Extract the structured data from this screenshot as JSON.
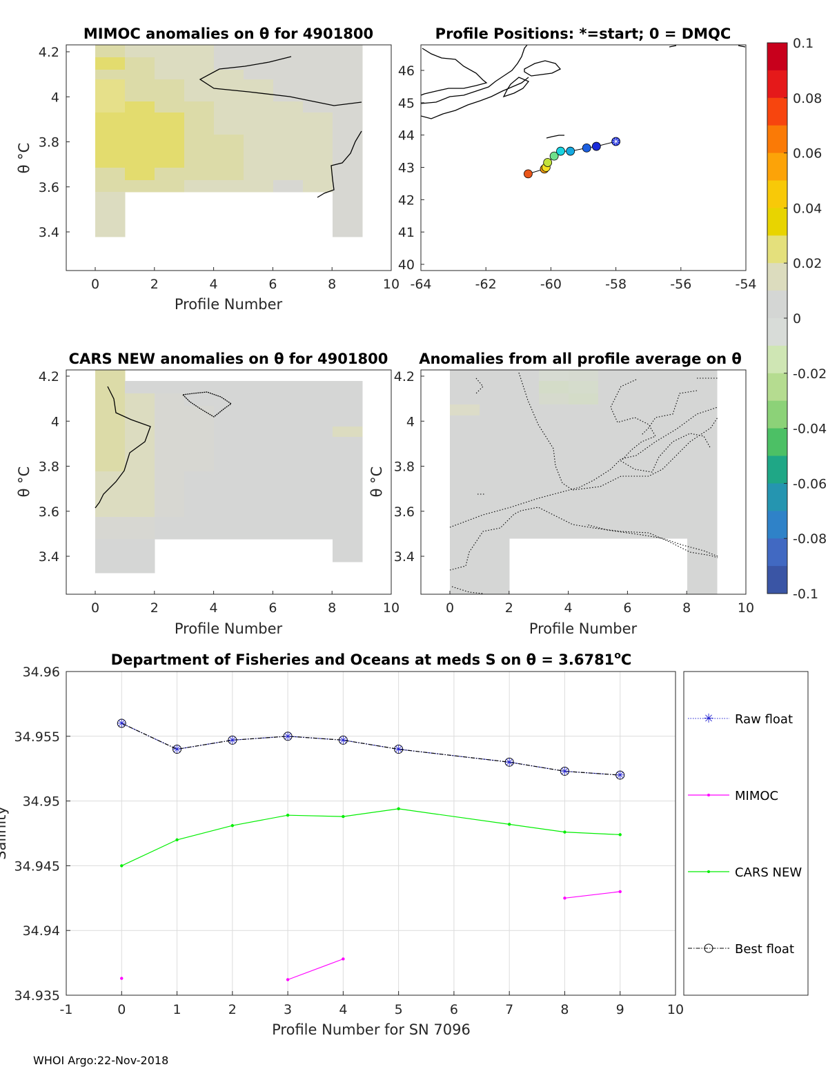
{
  "footer": "WHOI Argo:22-Nov-2018",
  "theta_symbol": "θ",
  "panels": {
    "mimoc": {
      "title": "MIMOC anomalies on θ  for 4901800",
      "xlabel": "Profile Number",
      "ylabel": "θ °C",
      "xticks": [
        "0",
        "2",
        "4",
        "6",
        "8",
        "10"
      ],
      "yticks": [
        "3.4",
        "3.6",
        "3.8",
        "4",
        "4.2"
      ]
    },
    "positions": {
      "title": "Profile Positions: *=start; 0 = DMQC",
      "xticks": [
        "-64",
        "-62",
        "-60",
        "-58",
        "-56",
        "-54"
      ],
      "yticks": [
        "40",
        "41",
        "42",
        "43",
        "44",
        "45",
        "46"
      ]
    },
    "cars": {
      "title": "CARS NEW anomalies on θ for 4901800",
      "xlabel": "Profile Number",
      "ylabel": "θ °C",
      "xticks": [
        "0",
        "2",
        "4",
        "6",
        "8",
        "10"
      ],
      "yticks": [
        "3.4",
        "3.6",
        "3.8",
        "4",
        "4.2"
      ]
    },
    "average": {
      "title": "Anomalies from all profile average on θ",
      "xlabel": "Profile Number",
      "ylabel": "θ °C",
      "xticks": [
        "0",
        "2",
        "4",
        "6",
        "8",
        "10"
      ],
      "yticks": [
        "3.4",
        "3.6",
        "3.8",
        "4",
        "4.2"
      ]
    }
  },
  "colorbar": {
    "ticks": [
      "0.1",
      "0.08",
      "0.06",
      "0.04",
      "0.02",
      "0",
      "-0.02",
      "-0.04",
      "-0.06",
      "-0.08",
      "-0.1"
    ],
    "colors": [
      "#c8001c",
      "#e5191a",
      "#f7450e",
      "#fa7a06",
      "#fca308",
      "#f8c908",
      "#e8d400",
      "#e4e07c",
      "#dcdcbe",
      "#d4d6d4",
      "#d8dcd8",
      "#cfe6b4",
      "#b5dc90",
      "#8cd278",
      "#4cc065",
      "#1fa786",
      "#2595b0",
      "#2f82c8",
      "#4169c2",
      "#3a55a5"
    ],
    "accent": "#c4001c"
  },
  "positions_data": {
    "lon": [
      -58.0,
      -58.6,
      -58.9,
      -59.4,
      -59.7,
      -59.9,
      -60.1,
      -60.15,
      -60.2,
      -60.7
    ],
    "lat": [
      43.8,
      43.65,
      43.6,
      43.5,
      43.5,
      43.35,
      43.15,
      43.0,
      42.95,
      42.8
    ],
    "colors": [
      "#1a2bd9",
      "#1a2bd9",
      "#1c5fe0",
      "#15a9e0",
      "#19d4e0",
      "#6ee08c",
      "#c2e33c",
      "#f5e020",
      "#f29a16",
      "#e9561a"
    ]
  },
  "chart_data": {
    "type": "line",
    "title": "Department of Fisheries and Oceans at meds S on θ = 3.6781°C",
    "title_parts": {
      "main": "Department of Fisheries and Oceans at meds S on θ = 3.6781",
      "degree": "o",
      "unit": "C"
    },
    "xlabel": "Profile Number for SN 7096",
    "ylabel": "Salinity",
    "xlim": [
      -1,
      10
    ],
    "ylim": [
      34.935,
      34.96
    ],
    "xticks": [
      "-1",
      "0",
      "1",
      "2",
      "3",
      "4",
      "5",
      "6",
      "7",
      "8",
      "9",
      "10"
    ],
    "yticks": [
      "34.935",
      "34.94",
      "34.945",
      "34.95",
      "34.955",
      "34.96"
    ],
    "series": [
      {
        "name": "Raw float",
        "color": "#1f1fd0",
        "x": [
          0,
          1,
          2,
          3,
          4,
          5,
          7,
          8,
          9
        ],
        "y": [
          34.956,
          34.954,
          34.9547,
          34.955,
          34.9547,
          34.954,
          34.953,
          34.9523,
          34.952
        ]
      },
      {
        "name": "MIMOC",
        "color": "#ff00ff",
        "segments": [
          {
            "x": [
              0
            ],
            "y": [
              34.9363
            ]
          },
          {
            "x": [
              3,
              4
            ],
            "y": [
              34.9362,
              34.9378
            ]
          },
          {
            "x": [
              8,
              9
            ],
            "y": [
              34.9425,
              34.943
            ]
          }
        ]
      },
      {
        "name": "CARS NEW",
        "color": "#00ee00",
        "x": [
          0,
          1,
          2,
          3,
          4,
          5,
          7,
          8,
          9
        ],
        "y": [
          34.945,
          34.947,
          34.9481,
          34.9489,
          34.9488,
          34.9494,
          34.9482,
          34.9476,
          34.9474
        ]
      },
      {
        "name": "Best float",
        "color": "#000000",
        "x": [
          0,
          1,
          2,
          3,
          4,
          5,
          7,
          8,
          9
        ],
        "y": [
          34.956,
          34.954,
          34.9547,
          34.955,
          34.9547,
          34.954,
          34.953,
          34.9523,
          34.952
        ]
      }
    ]
  }
}
